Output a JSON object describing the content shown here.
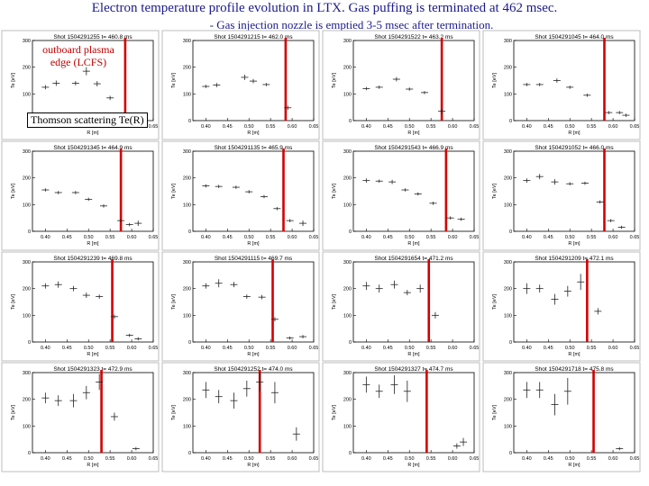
{
  "title": "Electron temperature profile evolution in LTX. Gas puffing is terminated at 462 msec.",
  "subtitle": "- Gas injection nozzle is emptied 3-5 msec after termination.",
  "annotations": {
    "lcfs_label": "outboard plasma edge (LCFS)",
    "thomson_label": "Thomson scattering   Te(R)"
  },
  "colors": {
    "lcfs_line": "#d40000",
    "title_text": "#1a1a8c",
    "annotation_red": "#c00000"
  },
  "chart_data": [
    {
      "type": "scatter",
      "title": "Shot 1504291255  t= 460.8 ms",
      "xlabel": "R [m]",
      "ylabel": "Te [eV]",
      "xlim": [
        0.37,
        0.65
      ],
      "ylim": [
        0,
        300
      ],
      "xticks": [
        "0.40",
        "0.45",
        "0.50",
        "0.55",
        "0.60",
        "0.65"
      ],
      "yticks": [
        "0",
        "100",
        "200",
        "300"
      ],
      "lcfs": 0.585,
      "points": [
        {
          "x": 0.4,
          "y": 125,
          "e": 8
        },
        {
          "x": 0.425,
          "y": 140,
          "e": 10
        },
        {
          "x": 0.47,
          "y": 140,
          "e": 8
        },
        {
          "x": 0.495,
          "y": 185,
          "e": 15
        },
        {
          "x": 0.52,
          "y": 138,
          "e": 10
        },
        {
          "x": 0.55,
          "y": 85,
          "e": 8
        }
      ]
    },
    {
      "type": "scatter",
      "title": "Shot 1504291215  t= 462.0 ms",
      "xlabel": "R [m]",
      "ylabel": "Te [eV]",
      "xlim": [
        0.37,
        0.65
      ],
      "ylim": [
        0,
        300
      ],
      "xticks": [
        "0.40",
        "0.45",
        "0.50",
        "0.55",
        "0.60",
        "0.65"
      ],
      "yticks": [
        "0",
        "100",
        "200",
        "300"
      ],
      "lcfs": 0.585,
      "points": [
        {
          "x": 0.4,
          "y": 128,
          "e": 6
        },
        {
          "x": 0.425,
          "y": 133,
          "e": 8
        },
        {
          "x": 0.49,
          "y": 162,
          "e": 10
        },
        {
          "x": 0.51,
          "y": 148,
          "e": 8
        },
        {
          "x": 0.54,
          "y": 135,
          "e": 6
        },
        {
          "x": 0.59,
          "y": 48,
          "e": 8
        }
      ]
    },
    {
      "type": "scatter",
      "title": "Shot 1504291522  t= 463.2 ms",
      "xlabel": "R [m]",
      "ylabel": "Te [eV]",
      "xlim": [
        0.37,
        0.65
      ],
      "ylim": [
        0,
        300
      ],
      "xticks": [
        "0.40",
        "0.45",
        "0.50",
        "0.55",
        "0.60",
        "0.65"
      ],
      "yticks": [
        "0",
        "100",
        "200",
        "300"
      ],
      "lcfs": 0.575,
      "points": [
        {
          "x": 0.4,
          "y": 120,
          "e": 6
        },
        {
          "x": 0.43,
          "y": 125,
          "e": 6
        },
        {
          "x": 0.47,
          "y": 155,
          "e": 8
        },
        {
          "x": 0.5,
          "y": 118,
          "e": 6
        },
        {
          "x": 0.535,
          "y": 105,
          "e": 6
        },
        {
          "x": 0.575,
          "y": 35,
          "e": 10
        }
      ]
    },
    {
      "type": "scatter",
      "title": "Shot 1504291045  t= 464.0 ms",
      "xlabel": "R [m]",
      "ylabel": "Te [eV]",
      "xlim": [
        0.37,
        0.65
      ],
      "ylim": [
        0,
        300
      ],
      "xticks": [
        "0.40",
        "0.45",
        "0.50",
        "0.55",
        "0.60",
        "0.65"
      ],
      "yticks": [
        "0",
        "100",
        "200",
        "300"
      ],
      "lcfs": 0.58,
      "points": [
        {
          "x": 0.4,
          "y": 135,
          "e": 6
        },
        {
          "x": 0.43,
          "y": 135,
          "e": 6
        },
        {
          "x": 0.47,
          "y": 150,
          "e": 8
        },
        {
          "x": 0.5,
          "y": 125,
          "e": 6
        },
        {
          "x": 0.54,
          "y": 95,
          "e": 6
        },
        {
          "x": 0.59,
          "y": 30,
          "e": 6
        },
        {
          "x": 0.615,
          "y": 30,
          "e": 6
        },
        {
          "x": 0.63,
          "y": 20,
          "e": 6
        }
      ]
    },
    {
      "type": "scatter",
      "title": "Shot 1504291345  t= 464.9 ms",
      "xlabel": "R [m]",
      "ylabel": "Te [eV]",
      "xlim": [
        0.37,
        0.65
      ],
      "ylim": [
        0,
        300
      ],
      "xticks": [
        "0.40",
        "0.45",
        "0.50",
        "0.55",
        "0.60",
        "0.65"
      ],
      "yticks": [
        "0",
        "100",
        "200",
        "300"
      ],
      "lcfs": 0.575,
      "points": [
        {
          "x": 0.4,
          "y": 155,
          "e": 6
        },
        {
          "x": 0.43,
          "y": 145,
          "e": 6
        },
        {
          "x": 0.47,
          "y": 145,
          "e": 6
        },
        {
          "x": 0.5,
          "y": 120,
          "e": 6
        },
        {
          "x": 0.535,
          "y": 95,
          "e": 6
        },
        {
          "x": 0.575,
          "y": 40,
          "e": 6
        },
        {
          "x": 0.595,
          "y": 25,
          "e": 6
        },
        {
          "x": 0.615,
          "y": 30,
          "e": 10
        }
      ]
    },
    {
      "type": "scatter",
      "title": "Shot 1504291135  t= 465.9 ms",
      "xlabel": "R [m]",
      "ylabel": "Te [eV]",
      "xlim": [
        0.37,
        0.65
      ],
      "ylim": [
        0,
        300
      ],
      "xticks": [
        "0.40",
        "0.45",
        "0.50",
        "0.55",
        "0.60",
        "0.65"
      ],
      "yticks": [
        "0",
        "100",
        "200",
        "300"
      ],
      "lcfs": 0.58,
      "points": [
        {
          "x": 0.4,
          "y": 170,
          "e": 6
        },
        {
          "x": 0.43,
          "y": 168,
          "e": 6
        },
        {
          "x": 0.47,
          "y": 165,
          "e": 6
        },
        {
          "x": 0.5,
          "y": 148,
          "e": 6
        },
        {
          "x": 0.535,
          "y": 130,
          "e": 6
        },
        {
          "x": 0.565,
          "y": 85,
          "e": 6
        },
        {
          "x": 0.595,
          "y": 40,
          "e": 6
        },
        {
          "x": 0.625,
          "y": 30,
          "e": 10
        }
      ]
    },
    {
      "type": "scatter",
      "title": "Shot 1504291543  t= 466.9 ms",
      "xlabel": "R [m]",
      "ylabel": "Te [eV]",
      "xlim": [
        0.37,
        0.65
      ],
      "ylim": [
        0,
        300
      ],
      "xticks": [
        "0.40",
        "0.45",
        "0.50",
        "0.55",
        "0.60",
        "0.65"
      ],
      "yticks": [
        "0",
        "100",
        "200",
        "300"
      ],
      "lcfs": 0.585,
      "points": [
        {
          "x": 0.4,
          "y": 190,
          "e": 8
        },
        {
          "x": 0.43,
          "y": 188,
          "e": 6
        },
        {
          "x": 0.46,
          "y": 185,
          "e": 8
        },
        {
          "x": 0.49,
          "y": 155,
          "e": 6
        },
        {
          "x": 0.52,
          "y": 140,
          "e": 6
        },
        {
          "x": 0.555,
          "y": 105,
          "e": 6
        },
        {
          "x": 0.595,
          "y": 50,
          "e": 6
        },
        {
          "x": 0.62,
          "y": 45,
          "e": 6
        }
      ]
    },
    {
      "type": "scatter",
      "title": "Shot 1504291052  t= 466.0 ms",
      "xlabel": "R [m]",
      "ylabel": "Te [eV]",
      "xlim": [
        0.37,
        0.65
      ],
      "ylim": [
        0,
        300
      ],
      "xticks": [
        "0.40",
        "0.45",
        "0.50",
        "0.55",
        "0.60",
        "0.65"
      ],
      "yticks": [
        "0",
        "100",
        "200",
        "300"
      ],
      "lcfs": 0.58,
      "points": [
        {
          "x": 0.4,
          "y": 190,
          "e": 8
        },
        {
          "x": 0.43,
          "y": 205,
          "e": 10
        },
        {
          "x": 0.465,
          "y": 185,
          "e": 10
        },
        {
          "x": 0.5,
          "y": 178,
          "e": 6
        },
        {
          "x": 0.535,
          "y": 180,
          "e": 6
        },
        {
          "x": 0.57,
          "y": 110,
          "e": 6
        },
        {
          "x": 0.595,
          "y": 40,
          "e": 6
        },
        {
          "x": 0.62,
          "y": 15,
          "e": 6
        }
      ]
    },
    {
      "type": "scatter",
      "title": "Shot 1504291239  t= 469.8 ms",
      "xlabel": "R [m]",
      "ylabel": "Te [eV]",
      "xlim": [
        0.37,
        0.65
      ],
      "ylim": [
        0,
        300
      ],
      "xticks": [
        "0.40",
        "0.45",
        "0.50",
        "0.55",
        "0.60",
        "0.65"
      ],
      "yticks": [
        "0",
        "100",
        "200",
        "300"
      ],
      "lcfs": 0.555,
      "points": [
        {
          "x": 0.4,
          "y": 210,
          "e": 10
        },
        {
          "x": 0.43,
          "y": 215,
          "e": 12
        },
        {
          "x": 0.465,
          "y": 200,
          "e": 10
        },
        {
          "x": 0.495,
          "y": 175,
          "e": 10
        },
        {
          "x": 0.525,
          "y": 170,
          "e": 8
        },
        {
          "x": 0.56,
          "y": 95,
          "e": 8
        },
        {
          "x": 0.595,
          "y": 25,
          "e": 6
        },
        {
          "x": 0.615,
          "y": 12,
          "e": 6
        }
      ]
    },
    {
      "type": "scatter",
      "title": "Shot 1504291115  t= 469.7 ms",
      "xlabel": "R [m]",
      "ylabel": "Te [eV]",
      "xlim": [
        0.37,
        0.65
      ],
      "ylim": [
        0,
        300
      ],
      "xticks": [
        "0.40",
        "0.45",
        "0.50",
        "0.55",
        "0.60",
        "0.65"
      ],
      "yticks": [
        "0",
        "100",
        "200",
        "300"
      ],
      "lcfs": 0.555,
      "points": [
        {
          "x": 0.4,
          "y": 210,
          "e": 10
        },
        {
          "x": 0.43,
          "y": 220,
          "e": 15
        },
        {
          "x": 0.465,
          "y": 215,
          "e": 10
        },
        {
          "x": 0.495,
          "y": 170,
          "e": 8
        },
        {
          "x": 0.53,
          "y": 168,
          "e": 8
        },
        {
          "x": 0.56,
          "y": 85,
          "e": 8
        },
        {
          "x": 0.595,
          "y": 15,
          "e": 6
        },
        {
          "x": 0.625,
          "y": 20,
          "e": 6
        }
      ]
    },
    {
      "type": "scatter",
      "title": "Shot 1504291654  t= 471.2 ms",
      "xlabel": "R [m]",
      "ylabel": "Te [eV]",
      "xlim": [
        0.37,
        0.65
      ],
      "ylim": [
        0,
        300
      ],
      "xticks": [
        "0.40",
        "0.45",
        "0.50",
        "0.55",
        "0.60",
        "0.65"
      ],
      "yticks": [
        "0",
        "100",
        "200",
        "300"
      ],
      "lcfs": 0.545,
      "points": [
        {
          "x": 0.4,
          "y": 210,
          "e": 15
        },
        {
          "x": 0.43,
          "y": 200,
          "e": 15
        },
        {
          "x": 0.465,
          "y": 215,
          "e": 15
        },
        {
          "x": 0.495,
          "y": 185,
          "e": 10
        },
        {
          "x": 0.525,
          "y": 200,
          "e": 15
        },
        {
          "x": 0.56,
          "y": 100,
          "e": 12
        }
      ]
    },
    {
      "type": "scatter",
      "title": "Shot 1504291209  t= 472.1 ms",
      "xlabel": "R [m]",
      "ylabel": "Te [eV]",
      "xlim": [
        0.37,
        0.65
      ],
      "ylim": [
        0,
        300
      ],
      "xticks": [
        "0.40",
        "0.45",
        "0.50",
        "0.55",
        "0.60",
        "0.65"
      ],
      "yticks": [
        "0",
        "100",
        "200",
        "300"
      ],
      "lcfs": 0.54,
      "points": [
        {
          "x": 0.4,
          "y": 200,
          "e": 20
        },
        {
          "x": 0.43,
          "y": 200,
          "e": 15
        },
        {
          "x": 0.465,
          "y": 160,
          "e": 20
        },
        {
          "x": 0.495,
          "y": 190,
          "e": 20
        },
        {
          "x": 0.525,
          "y": 225,
          "e": 30
        },
        {
          "x": 0.565,
          "y": 115,
          "e": 12
        }
      ]
    },
    {
      "type": "scatter",
      "title": "Shot 1504291323  t= 472.9 ms",
      "xlabel": "R [m]",
      "ylabel": "Te [eV]",
      "xlim": [
        0.37,
        0.65
      ],
      "ylim": [
        0,
        300
      ],
      "xticks": [
        "0.40",
        "0.45",
        "0.50",
        "0.55",
        "0.60",
        "0.65"
      ],
      "yticks": [
        "0",
        "100",
        "200",
        "300"
      ],
      "lcfs": 0.53,
      "points": [
        {
          "x": 0.4,
          "y": 205,
          "e": 20
        },
        {
          "x": 0.43,
          "y": 195,
          "e": 20
        },
        {
          "x": 0.465,
          "y": 195,
          "e": 25
        },
        {
          "x": 0.495,
          "y": 225,
          "e": 25
        },
        {
          "x": 0.525,
          "y": 265,
          "e": 30
        },
        {
          "x": 0.56,
          "y": 135,
          "e": 15
        },
        {
          "x": 0.61,
          "y": 15,
          "e": 6
        }
      ]
    },
    {
      "type": "scatter",
      "title": "Shot 1504291252  t= 474.0 ms",
      "xlabel": "R [m]",
      "ylabel": "Te [eV]",
      "xlim": [
        0.37,
        0.65
      ],
      "ylim": [
        0,
        300
      ],
      "xticks": [
        "0.40",
        "0.45",
        "0.50",
        "0.55",
        "0.60",
        "0.65"
      ],
      "yticks": [
        "0",
        "100",
        "200",
        "300"
      ],
      "lcfs": 0.525,
      "points": [
        {
          "x": 0.4,
          "y": 235,
          "e": 30
        },
        {
          "x": 0.43,
          "y": 210,
          "e": 25
        },
        {
          "x": 0.465,
          "y": 195,
          "e": 30
        },
        {
          "x": 0.495,
          "y": 240,
          "e": 30
        },
        {
          "x": 0.525,
          "y": 265,
          "e": 35
        },
        {
          "x": 0.56,
          "y": 225,
          "e": 40
        },
        {
          "x": 0.61,
          "y": 70,
          "e": 25
        }
      ]
    },
    {
      "type": "scatter",
      "title": "Shot 1504291327  t= 474.7 ms",
      "xlabel": "R [m]",
      "ylabel": "Te [eV]",
      "xlim": [
        0.37,
        0.65
      ],
      "ylim": [
        0,
        300
      ],
      "xticks": [
        "0.40",
        "0.45",
        "0.50",
        "0.55",
        "0.60",
        "0.65"
      ],
      "yticks": [
        "0",
        "100",
        "200",
        "300"
      ],
      "lcfs": 0.54,
      "points": [
        {
          "x": 0.4,
          "y": 255,
          "e": 30
        },
        {
          "x": 0.43,
          "y": 230,
          "e": 25
        },
        {
          "x": 0.465,
          "y": 255,
          "e": 35
        },
        {
          "x": 0.495,
          "y": 230,
          "e": 40
        },
        {
          "x": 0.61,
          "y": 25,
          "e": 10
        },
        {
          "x": 0.625,
          "y": 40,
          "e": 15
        }
      ]
    },
    {
      "type": "scatter",
      "title": "Shot 1504291718  t= 475.8 ms",
      "xlabel": "R [m]",
      "ylabel": "Te [eV]",
      "xlim": [
        0.37,
        0.65
      ],
      "ylim": [
        0,
        300
      ],
      "xticks": [
        "0.40",
        "0.45",
        "0.50",
        "0.55",
        "0.60",
        "0.65"
      ],
      "yticks": [
        "0",
        "100",
        "200",
        "300"
      ],
      "lcfs": 0.555,
      "points": [
        {
          "x": 0.4,
          "y": 235,
          "e": 30
        },
        {
          "x": 0.43,
          "y": 235,
          "e": 30
        },
        {
          "x": 0.465,
          "y": 180,
          "e": 40
        },
        {
          "x": 0.495,
          "y": 230,
          "e": 50
        },
        {
          "x": 0.615,
          "y": 15,
          "e": 6
        }
      ]
    }
  ]
}
